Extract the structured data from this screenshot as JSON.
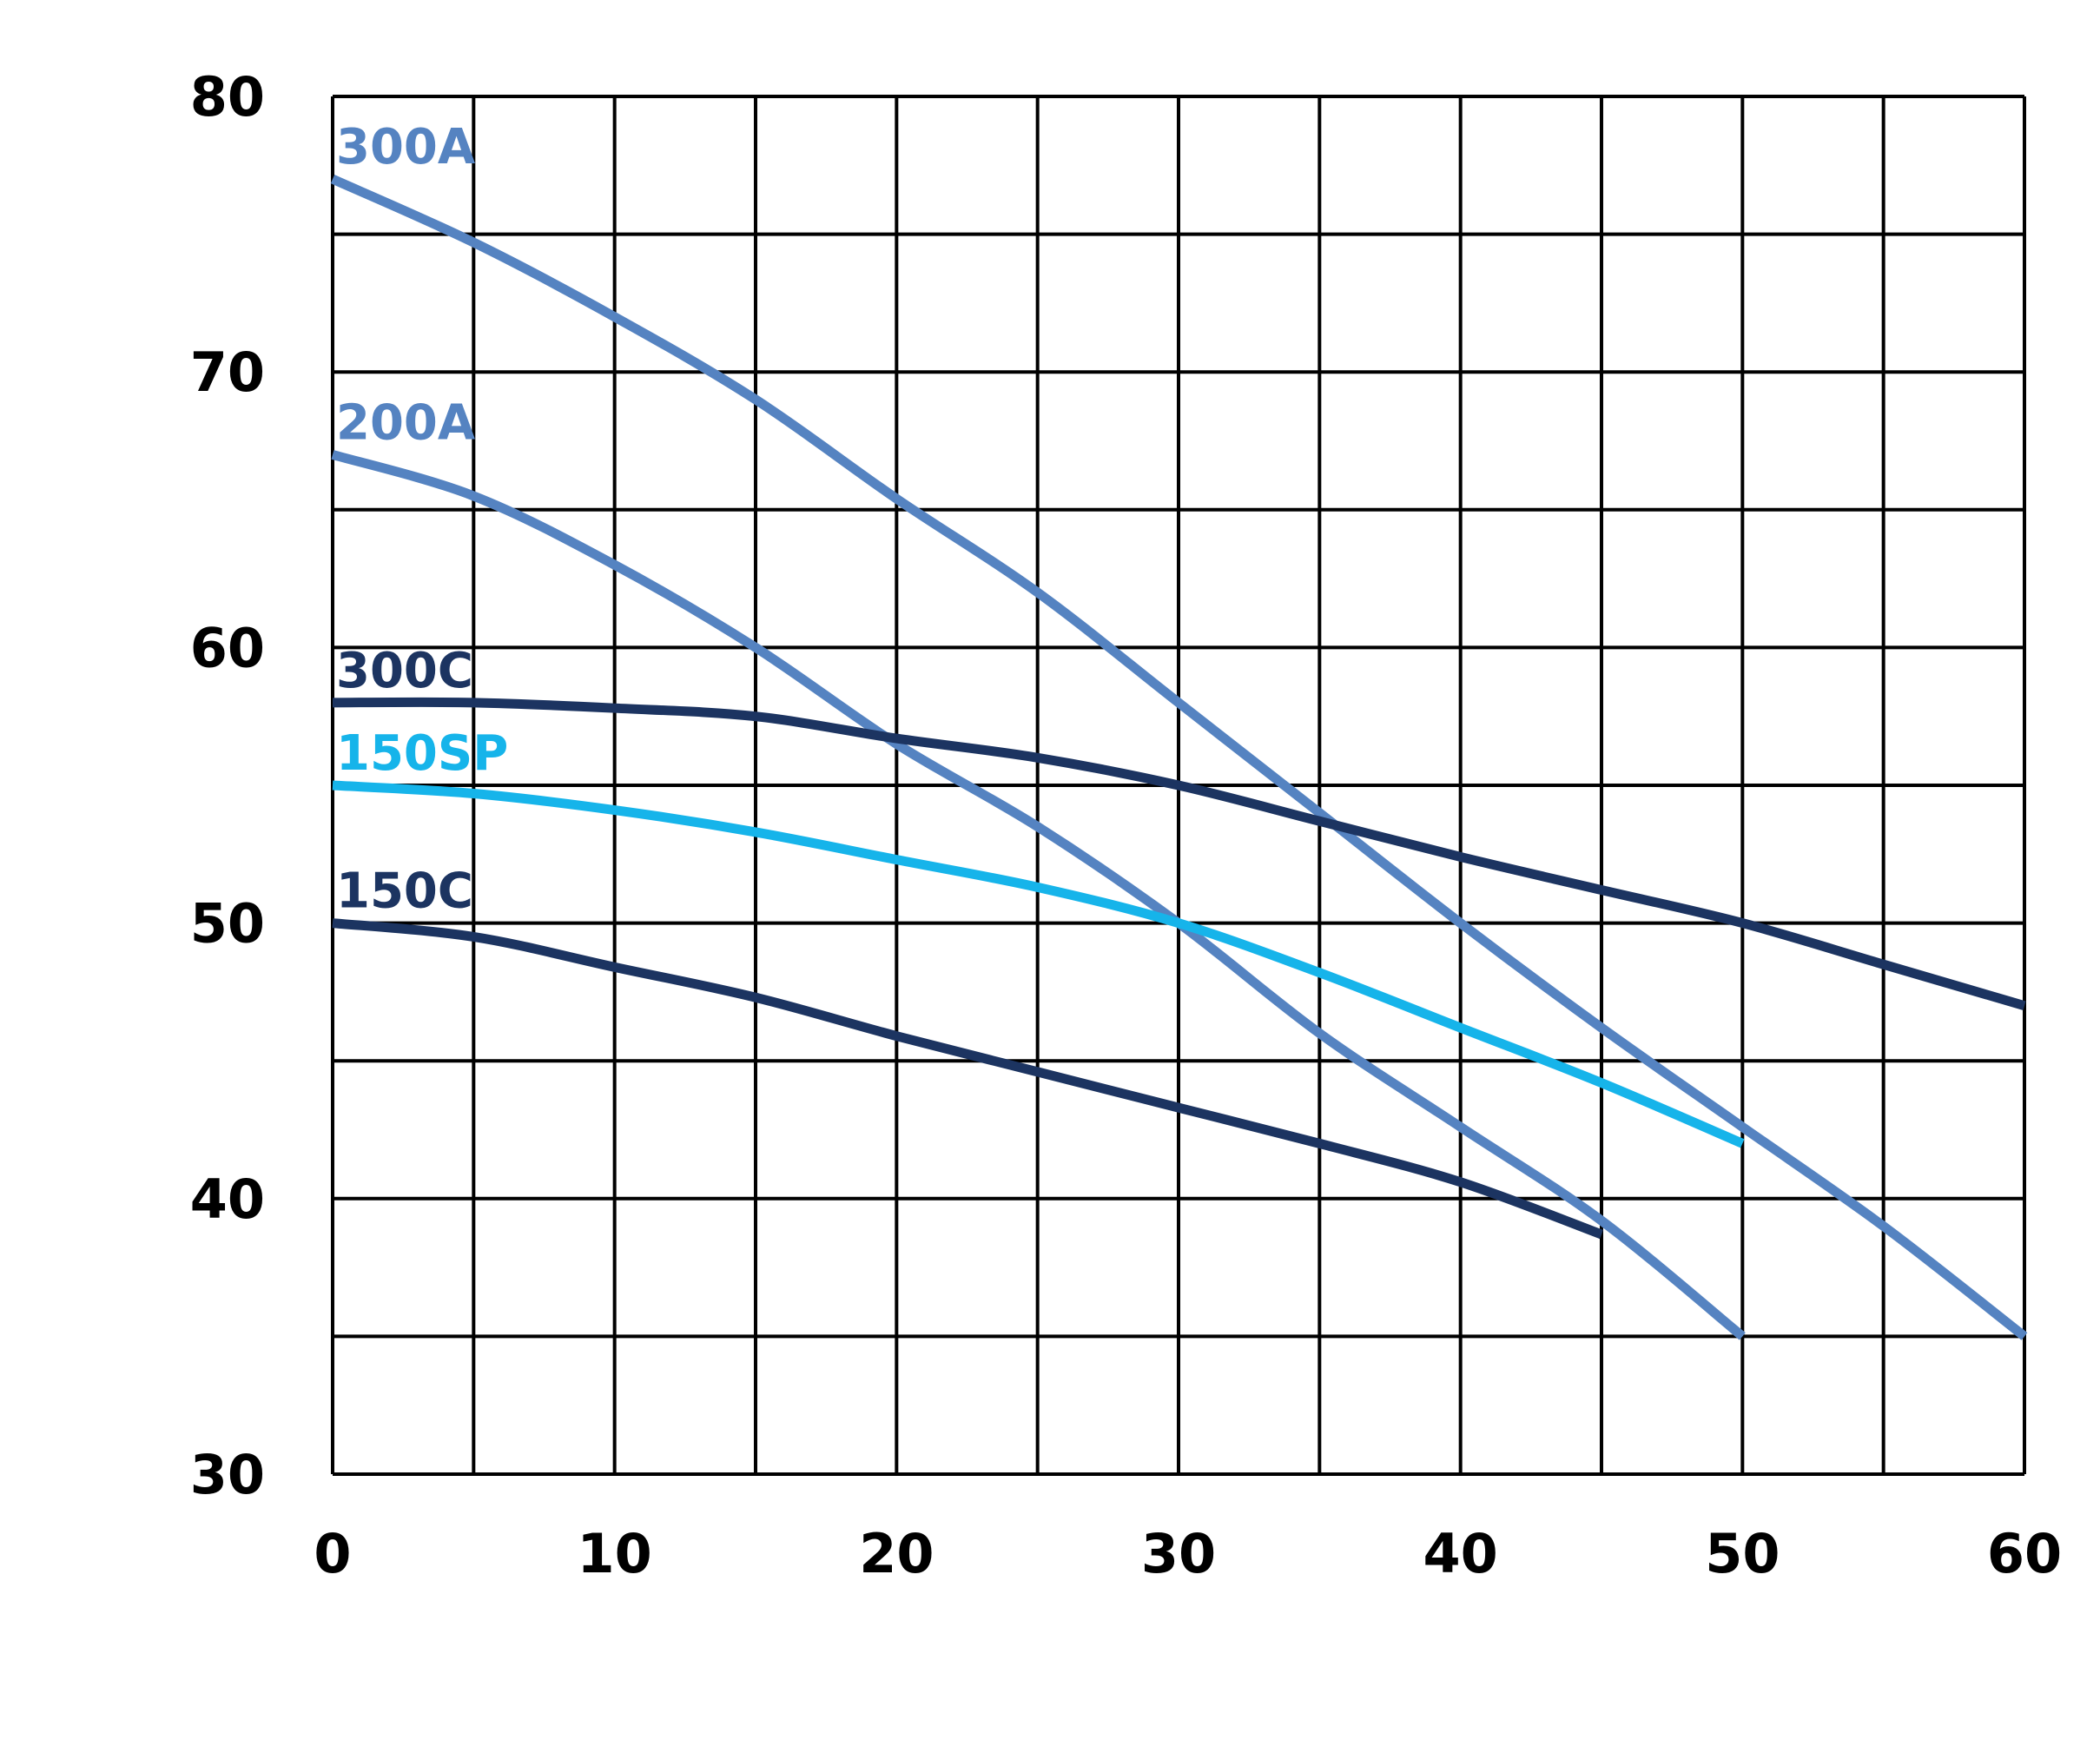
{
  "chart_data": {
    "type": "line",
    "title": "",
    "xlabel": "",
    "ylabel": "",
    "xlim": [
      0,
      60
    ],
    "ylim": [
      30,
      80
    ],
    "x_step": 5,
    "y_step": 5,
    "x_ticks": [
      0,
      10,
      20,
      30,
      40,
      50,
      60
    ],
    "y_ticks": [
      30,
      40,
      50,
      60,
      70,
      80
    ],
    "grid": true,
    "legend": "inline labels at line starts",
    "series": [
      {
        "name": "300A",
        "color": "#5583c1",
        "x": [
          0,
          5,
          10,
          15,
          20,
          25,
          30,
          35,
          40,
          45,
          50,
          55,
          60
        ],
        "y": [
          77,
          74.7,
          72,
          69,
          65.4,
          62,
          58,
          54,
          50,
          46.2,
          42.6,
          39,
          35
        ]
      },
      {
        "name": "200A",
        "color": "#5583c1",
        "x": [
          0,
          5,
          10,
          15,
          20,
          25,
          30,
          35,
          40,
          45,
          50
        ],
        "y": [
          67,
          65.5,
          63,
          60,
          56.5,
          53.5,
          50,
          46,
          42.6,
          39.2,
          35
        ]
      },
      {
        "name": "300C",
        "color": "#1c3461",
        "x": [
          0,
          5,
          10,
          15,
          20,
          25,
          30,
          35,
          40,
          45,
          50,
          55,
          60
        ],
        "y": [
          58,
          58,
          57.8,
          57.5,
          56.7,
          56,
          55,
          53.7,
          52.4,
          51.2,
          50,
          48.5,
          47
        ]
      },
      {
        "name": "150SP",
        "color": "#16b4ea",
        "x": [
          0,
          5,
          10,
          15,
          20,
          25,
          30,
          35,
          40,
          45,
          50
        ],
        "y": [
          55,
          54.7,
          54.1,
          53.3,
          52.3,
          51.3,
          50,
          48.2,
          46.2,
          44.2,
          42
        ]
      },
      {
        "name": "150C",
        "color": "#1c3461",
        "x": [
          0,
          5,
          10,
          15,
          20,
          25,
          30,
          35,
          40,
          45
        ],
        "y": [
          50,
          49.5,
          48.4,
          47.3,
          45.9,
          44.6,
          43.3,
          42,
          40.6,
          38.7
        ]
      }
    ]
  }
}
